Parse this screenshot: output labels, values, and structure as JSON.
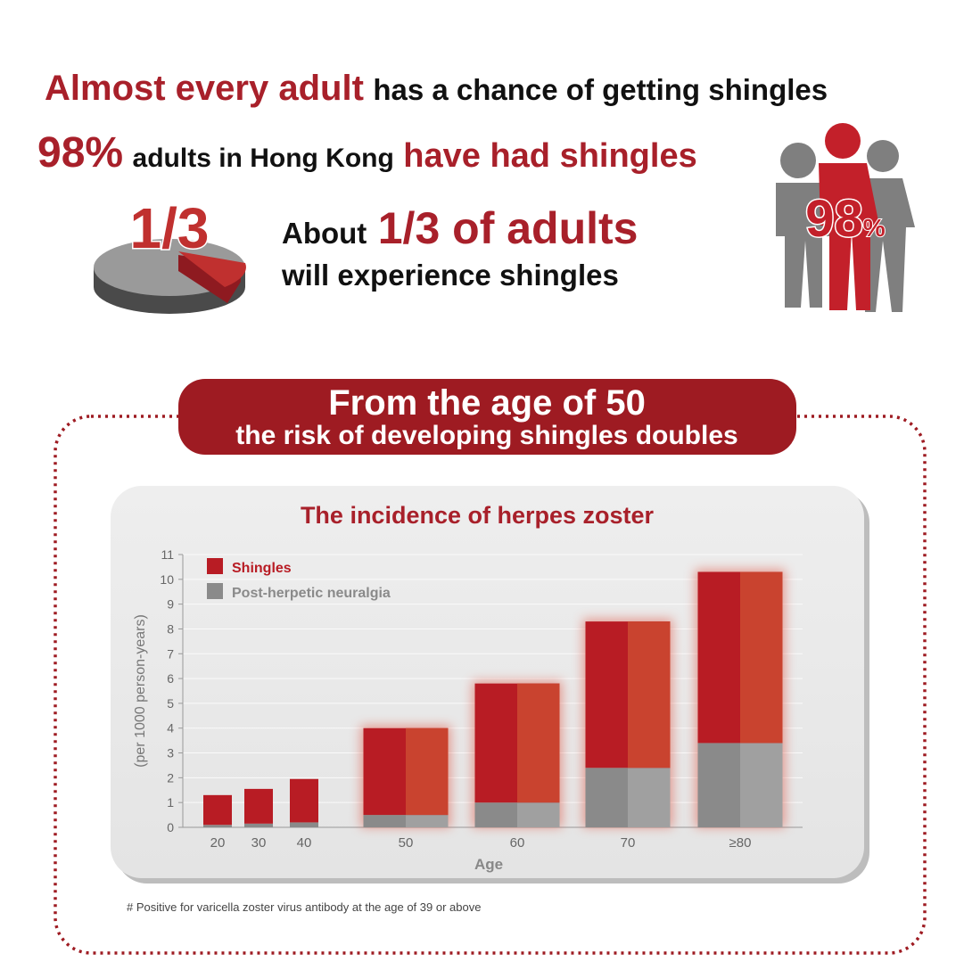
{
  "headline": {
    "red": "Almost every adult",
    "black": "has a chance of getting shingles"
  },
  "stat": {
    "big": "98%",
    "middle": "adults in Hong Kong",
    "end": "have had shingles"
  },
  "third": {
    "pie_label": "1/3",
    "about": "About",
    "big": "1/3 of adults",
    "line2": "will experience shingles"
  },
  "figure_label": {
    "number": "98",
    "unit": "%"
  },
  "banner": {
    "line1": "From the age of 50",
    "line2": "the risk of developing shingles doubles"
  },
  "chart_data": {
    "type": "stacked_bar",
    "title": "The incidence of herpes zoster",
    "y_label": "(per 1000 person-years)",
    "x_label": "Age",
    "categories": [
      "20",
      "30",
      "40",
      "50",
      "60",
      "70",
      "≥80"
    ],
    "series": [
      {
        "name": "Post-herpetic neuralgia",
        "color": "#8a8a8a",
        "values": [
          0.1,
          0.15,
          0.2,
          0.5,
          1.0,
          2.4,
          3.4
        ]
      },
      {
        "name": "Shingles",
        "color": "#b81c24",
        "values": [
          1.2,
          1.4,
          1.75,
          3.5,
          4.8,
          5.9,
          6.9
        ]
      }
    ],
    "ylim": [
      0,
      11
    ],
    "yticks": [
      0,
      1,
      2,
      3,
      4,
      5,
      6,
      7,
      8,
      9,
      10,
      11
    ],
    "grid": true
  },
  "footnote": "# Positive for varicella zoster virus antibody at the age of 39 or above"
}
